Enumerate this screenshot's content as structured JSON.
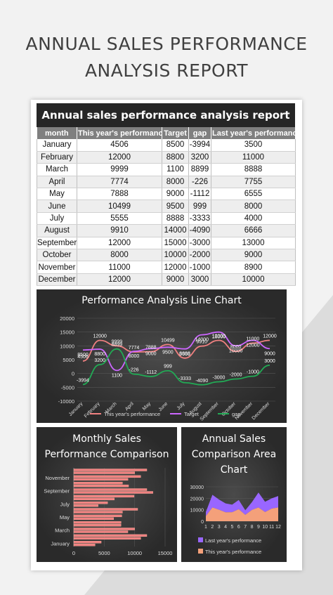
{
  "page_title_line1": "ANNUAL SALES PERFORMANCE",
  "page_title_line2": "ANALYSIS REPORT",
  "table": {
    "title": "Annual sales performance analysis report",
    "headers": [
      "month",
      "This year's performance",
      "Target",
      "gap",
      "Last year's performance"
    ],
    "rows": [
      [
        "January",
        "4506",
        "8500",
        "-3994",
        "3500"
      ],
      [
        "February",
        "12000",
        "8800",
        "3200",
        "11000"
      ],
      [
        "March",
        "9999",
        "1100",
        "8899",
        "8888"
      ],
      [
        "April",
        "7774",
        "8000",
        "-226",
        "7755"
      ],
      [
        "May",
        "7888",
        "9000",
        "-1112",
        "6555"
      ],
      [
        "June",
        "10499",
        "9500",
        "999",
        "8000"
      ],
      [
        "July",
        "5555",
        "8888",
        "-3333",
        "4000"
      ],
      [
        "August",
        "9910",
        "14000",
        "-4090",
        "6666"
      ],
      [
        "September",
        "12000",
        "15000",
        "-3000",
        "13000"
      ],
      [
        "October",
        "8000",
        "10000",
        "-2000",
        "9000"
      ],
      [
        "November",
        "11000",
        "12000",
        "-1000",
        "8900"
      ],
      [
        "December",
        "12000",
        "9000",
        "3000",
        "10000"
      ]
    ]
  },
  "colors": {
    "this_year": "#f08080",
    "target": "#cc66ff",
    "gap": "#22aa55",
    "last_year": "#9966ff",
    "dark_bg": "#2b2b2b",
    "header_gray": "#7f7f7f"
  },
  "chart_data": [
    {
      "type": "line",
      "title": "Performance Analysis Line Chart",
      "categories": [
        "January",
        "February",
        "March",
        "April",
        "May",
        "June",
        "July",
        "August",
        "September",
        "October",
        "November",
        "December"
      ],
      "series": [
        {
          "name": "This year's performance",
          "values": [
            4506,
            12000,
            9999,
            7774,
            7888,
            10499,
            5555,
            9910,
            12000,
            8000,
            11000,
            12000
          ]
        },
        {
          "name": "Target",
          "values": [
            8500,
            8800,
            1100,
            8000,
            9000,
            9500,
            8888,
            14000,
            15000,
            10000,
            12000,
            9000
          ]
        },
        {
          "name": "gap",
          "values": [
            -3994,
            3200,
            8899,
            -226,
            -1112,
            999,
            -3333,
            -4090,
            -3000,
            -2000,
            -1000,
            3000
          ]
        }
      ],
      "data_labels": [
        "8500",
        "12000",
        "4506",
        "3200",
        "9999",
        "8899",
        "1100",
        "-3994",
        "7774",
        "8000",
        "7888",
        "9000",
        "-226",
        "-1112",
        "9500",
        "10499",
        "999",
        "5555",
        "-3333",
        "8888",
        "14000",
        "9910",
        "-4090",
        "15000",
        "12000",
        "-3000",
        "10000",
        "8000",
        "-2000",
        "12000",
        "11000",
        "-1000",
        "12000",
        "9000",
        "3000"
      ],
      "yticks": [
        "20000",
        "15000",
        "10000",
        "5000",
        "0",
        "-5000",
        "-10000"
      ],
      "ylim": [
        -10000,
        20000
      ],
      "legend": "bottom"
    },
    {
      "type": "bar",
      "orientation": "horizontal",
      "title_line1": "Monthly Sales",
      "title_line2": "Performance Comparison",
      "categories": [
        "January",
        "February",
        "March",
        "April",
        "May",
        "June",
        "July",
        "August",
        "September",
        "October",
        "November",
        "December"
      ],
      "ytick_labels": [
        "November",
        "September",
        "July",
        "May",
        "March",
        "January"
      ],
      "series": [
        {
          "values": [
            4506,
            12000,
            9999,
            7774,
            7888,
            10499,
            5555,
            9910,
            12000,
            8000,
            11000,
            12000
          ]
        },
        {
          "values": [
            3500,
            11000,
            8888,
            7755,
            6555,
            8000,
            4000,
            6666,
            13000,
            9000,
            8900,
            10000
          ]
        }
      ],
      "xticks": [
        "0",
        "5000",
        "10000",
        "15000"
      ],
      "xlim": [
        0,
        15000
      ]
    },
    {
      "type": "area",
      "title_line1": "Annual Sales",
      "title_line2": "Comparison Area",
      "title_line3": "Chart",
      "x": [
        "1",
        "2",
        "3",
        "4",
        "5",
        "6",
        "7",
        "8",
        "9",
        "10",
        "11",
        "12"
      ],
      "series": [
        {
          "name": "Last year's performance",
          "values": [
            3500,
            11000,
            8888,
            7755,
            6555,
            8000,
            4000,
            6666,
            13000,
            9000,
            8900,
            10000
          ]
        },
        {
          "name": "This year's performance",
          "values": [
            4506,
            12000,
            9999,
            7774,
            7888,
            10499,
            5555,
            9910,
            12000,
            8000,
            11000,
            12000
          ]
        }
      ],
      "yticks": [
        "30000",
        "20000",
        "10000",
        "0"
      ],
      "ylim": [
        0,
        30000
      ],
      "legend": "bottom"
    }
  ]
}
